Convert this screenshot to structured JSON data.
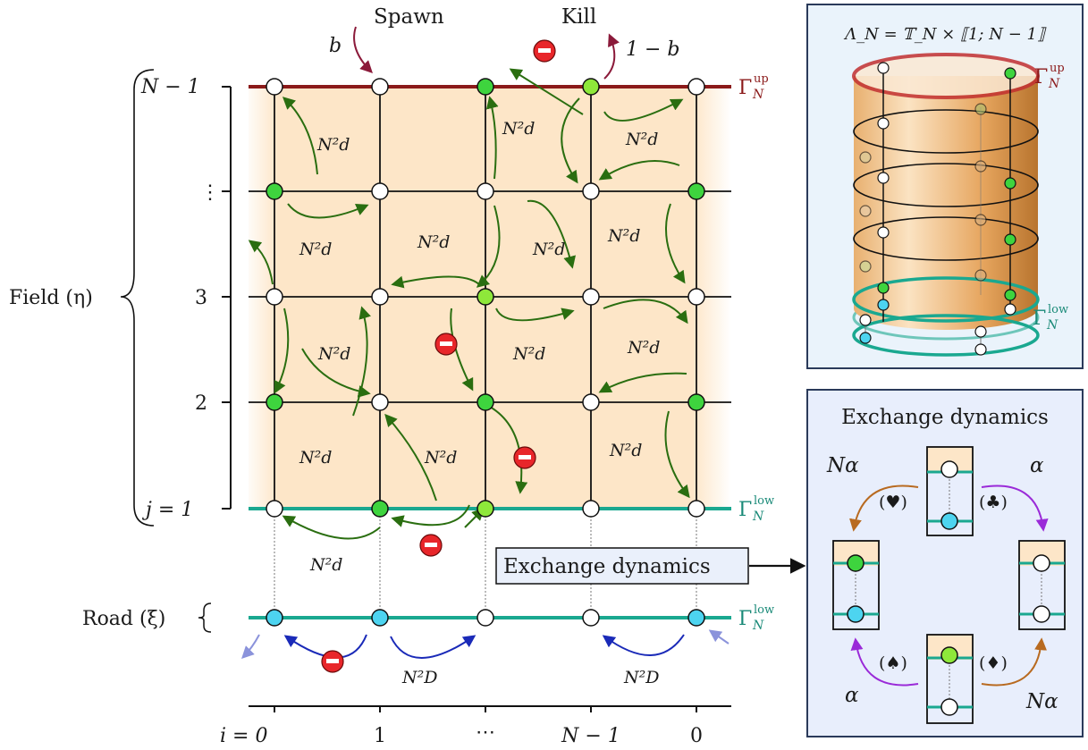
{
  "top": {
    "spawn": "Spawn",
    "kill": "Kill",
    "b": "b",
    "one_minus_b": "1 − b"
  },
  "field": {
    "label": "Field (η)",
    "row_labels": [
      "N − 1",
      "⋮",
      "3",
      "2",
      "j = 1"
    ],
    "top_boundary": {
      "base": "Γ",
      "sub": "N",
      "sup": "up"
    },
    "bottom_boundary": {
      "base": "Γ",
      "sub": "N",
      "sup": "low"
    }
  },
  "road": {
    "label": "Road (ξ)",
    "boundary": {
      "base": "Γ",
      "sub": "N",
      "sup": "low"
    }
  },
  "col_labels": [
    "i = 0",
    "1",
    "⋯",
    "N − 1",
    "0"
  ],
  "rates": {
    "field": "N²d",
    "road": "N²D"
  },
  "exchange_tag": "Exchange dynamics",
  "cylinder_panel": {
    "title": "Λ_N = 𝕋_N × ⟦1; N − 1⟧",
    "top_label": {
      "base": "Γ",
      "sub": "N",
      "sup": "up"
    },
    "bottom_label": {
      "base": "Γ",
      "sub": "N",
      "sup": "low"
    }
  },
  "exchange_panel": {
    "title": "Exchange dynamics",
    "rate_nalpha": "Nα",
    "rate_alpha": "α",
    "heart": "(♥)",
    "club": "(♣)",
    "spade": "(♠)",
    "diamond": "(♦)"
  },
  "colors": {
    "field_bg": "#fde6c8",
    "top_line": "#8b1a1a",
    "teal": "#1aa890",
    "green_site": "#3ed43e",
    "light_green_site": "#8ee83a",
    "blue_site": "#4dd4f0",
    "arrow_green": "#2a6e10",
    "arrow_blue": "#1a2ab8",
    "arrow_orange": "#b86a20",
    "arrow_purple": "#9a2ad8",
    "panel_bg": "#eaf3fb",
    "panel_border": "#2a3a5a"
  }
}
